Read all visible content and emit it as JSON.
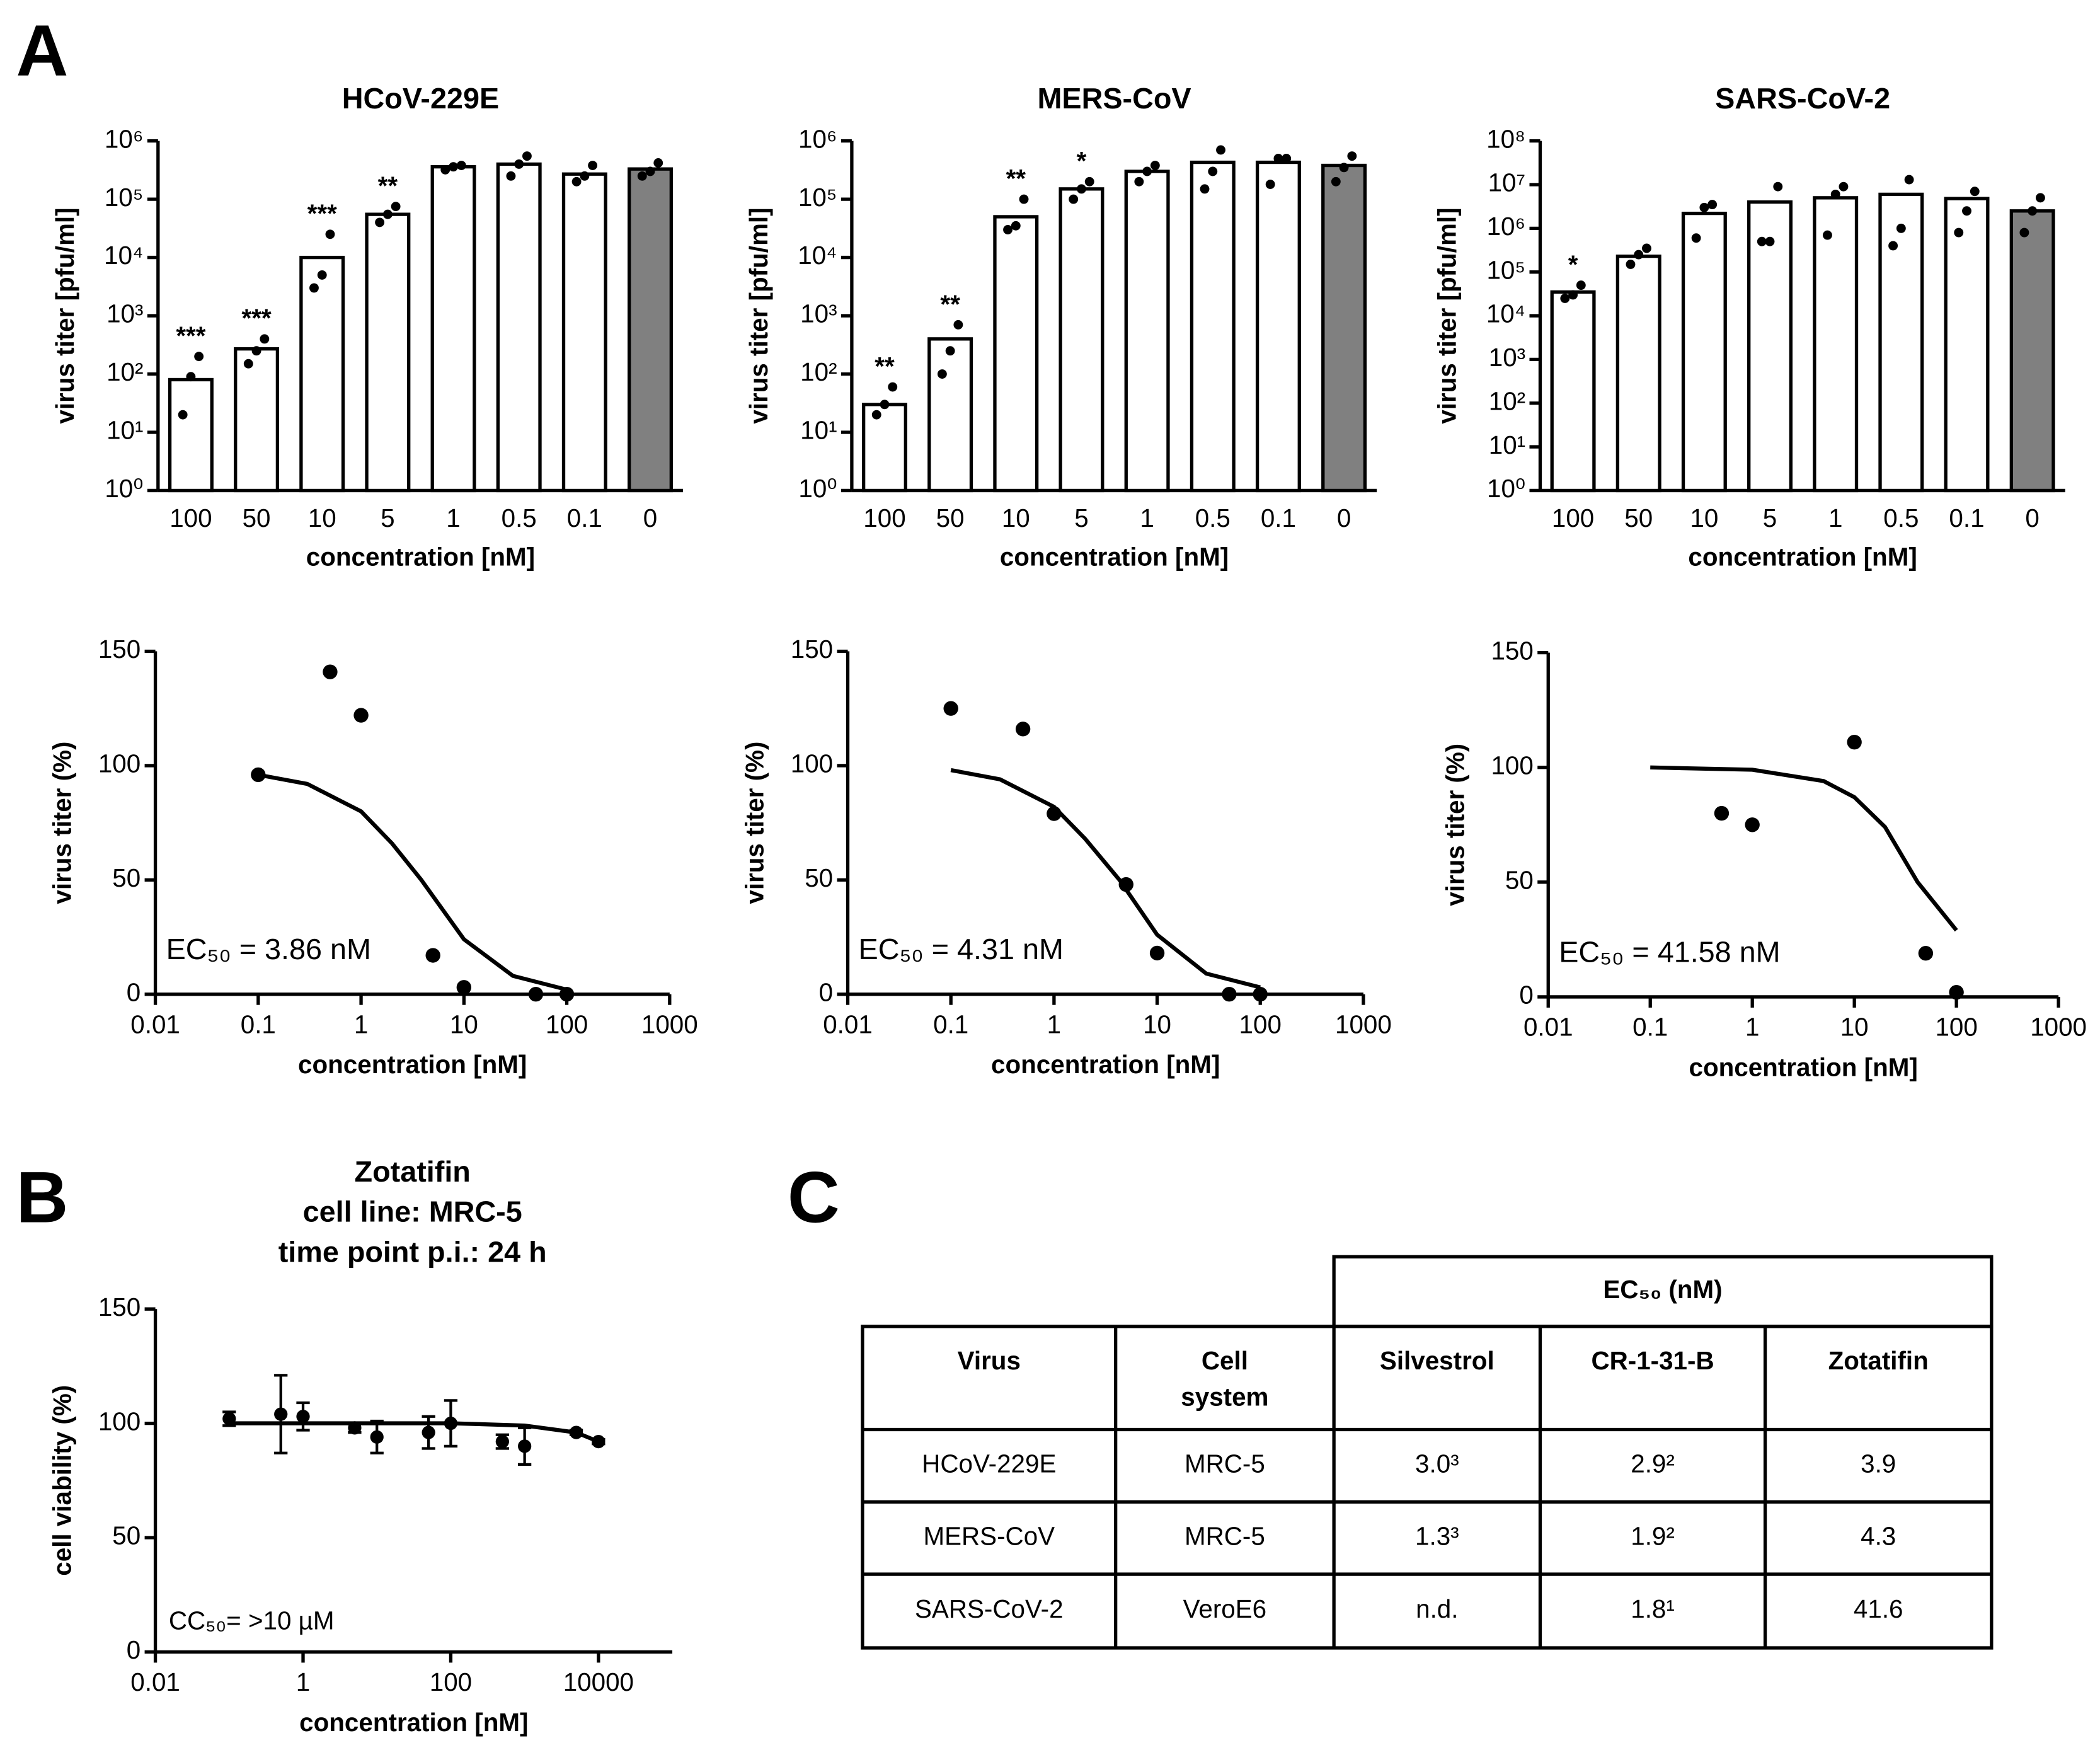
{
  "panels": [
    "A",
    "B",
    "C"
  ],
  "chart_data": [
    {
      "type": "bar",
      "title": "HCoV-229E",
      "xlabel": "concentration [nM]",
      "ylabel": "virus titer [pfu/ml]",
      "log_scale": true,
      "categories": [
        "100",
        "50",
        "10",
        "5",
        "1",
        "0.5",
        "0.1",
        "0"
      ],
      "values": [
        80,
        270,
        10000,
        55000,
        360000,
        400000,
        270000,
        330000
      ],
      "colors": [
        "#ffffff",
        "#ffffff",
        "#ffffff",
        "#ffffff",
        "#ffffff",
        "#ffffff",
        "#ffffff",
        "#808080"
      ],
      "points": [
        [
          20,
          90,
          200
        ],
        [
          150,
          250,
          400
        ],
        [
          3000,
          5000,
          25000
        ],
        [
          40000,
          55000,
          75000
        ],
        [
          320000,
          360000,
          380000
        ],
        [
          250000,
          400000,
          550000
        ],
        [
          200000,
          250000,
          380000
        ],
        [
          250000,
          300000,
          420000
        ]
      ],
      "annotations": [
        "***",
        "***",
        "***",
        "**",
        null,
        null,
        null,
        null
      ],
      "ylim": [
        1,
        1000000
      ],
      "yticks": [
        {
          "value": 1,
          "label": "10⁰"
        },
        {
          "value": 10,
          "label": "10¹"
        },
        {
          "value": 100,
          "label": "10²"
        },
        {
          "value": 1000,
          "label": "10³"
        },
        {
          "value": 10000,
          "label": "10⁴"
        },
        {
          "value": 100000,
          "label": "10⁵"
        },
        {
          "value": 1000000,
          "label": "10⁶"
        }
      ]
    },
    {
      "type": "bar",
      "title": "MERS-CoV",
      "xlabel": "concentration [nM]",
      "ylabel": "virus titer [pfu/ml]",
      "log_scale": true,
      "categories": [
        "100",
        "50",
        "10",
        "5",
        "1",
        "0.5",
        "0.1",
        "0"
      ],
      "values": [
        30,
        400,
        50000,
        150000,
        300000,
        430000,
        430000,
        380000
      ],
      "colors": [
        "#ffffff",
        "#ffffff",
        "#ffffff",
        "#ffffff",
        "#ffffff",
        "#ffffff",
        "#ffffff",
        "#808080"
      ],
      "points": [
        [
          20,
          30,
          60
        ],
        [
          100,
          250,
          700
        ],
        [
          30000,
          35000,
          100000
        ],
        [
          100000,
          150000,
          200000
        ],
        [
          200000,
          300000,
          380000
        ],
        [
          150000,
          300000,
          700000
        ],
        [
          180000,
          500000,
          500000
        ],
        [
          200000,
          350000,
          550000
        ]
      ],
      "annotations": [
        "**",
        "**",
        "**",
        "*",
        null,
        null,
        null,
        null
      ],
      "ylim": [
        1,
        1000000
      ],
      "yticks": [
        {
          "value": 1,
          "label": "10⁰"
        },
        {
          "value": 10,
          "label": "10¹"
        },
        {
          "value": 100,
          "label": "10²"
        },
        {
          "value": 1000,
          "label": "10³"
        },
        {
          "value": 10000,
          "label": "10⁴"
        },
        {
          "value": 100000,
          "label": "10⁵"
        },
        {
          "value": 1000000,
          "label": "10⁶"
        }
      ]
    },
    {
      "type": "bar",
      "title": "SARS-CoV-2",
      "xlabel": "concentration [nM]",
      "ylabel": "virus titer [pfu/ml]",
      "log_scale": true,
      "categories": [
        "100",
        "50",
        "10",
        "5",
        "1",
        "0.5",
        "0.1",
        "0"
      ],
      "values": [
        35000,
        230000,
        2200000,
        4000000,
        5000000,
        6000000,
        4800000,
        2500000
      ],
      "colors": [
        "#ffffff",
        "#ffffff",
        "#ffffff",
        "#ffffff",
        "#ffffff",
        "#ffffff",
        "#ffffff",
        "#808080"
      ],
      "points": [
        [
          25000,
          30000,
          50000
        ],
        [
          150000,
          250000,
          350000
        ],
        [
          600000,
          3000000,
          3500000
        ],
        [
          500000,
          500000,
          9000000
        ],
        [
          700000,
          6000000,
          9000000
        ],
        [
          400000,
          1000000,
          13000000
        ],
        [
          800000,
          2500000,
          7000000
        ],
        [
          800000,
          2500000,
          5000000
        ]
      ],
      "annotations": [
        "*",
        null,
        null,
        null,
        null,
        null,
        null,
        null
      ],
      "ylim": [
        1,
        100000000
      ],
      "yticks": [
        {
          "value": 1,
          "label": "10⁰"
        },
        {
          "value": 10,
          "label": "10¹"
        },
        {
          "value": 100,
          "label": "10²"
        },
        {
          "value": 1000,
          "label": "10³"
        },
        {
          "value": 10000,
          "label": "10⁴"
        },
        {
          "value": 100000,
          "label": "10⁵"
        },
        {
          "value": 1000000,
          "label": "10⁶"
        },
        {
          "value": 10000000,
          "label": "10⁷"
        },
        {
          "value": 100000000,
          "label": "10⁸"
        }
      ]
    },
    {
      "type": "scatter",
      "xlabel": "concentration [nM]",
      "ylabel": "virus titer (%)",
      "log_x": true,
      "annotation": "EC₅₀ = 3.86 nM",
      "x": [
        0.1,
        0.5,
        1,
        5,
        10,
        50,
        100
      ],
      "values": [
        96,
        141,
        122,
        17,
        3,
        0,
        0
      ],
      "fit": {
        "x": [
          0.1,
          0.3,
          1,
          2,
          3.86,
          10,
          30,
          100
        ],
        "y": [
          96,
          92,
          80,
          66,
          50,
          24,
          8,
          2
        ]
      },
      "xlim": [
        0.01,
        1000
      ],
      "xticks": [
        0.01,
        0.1,
        1,
        10,
        100,
        1000
      ],
      "ylim": [
        0,
        150
      ],
      "yticks": [
        0,
        50,
        100,
        150
      ]
    },
    {
      "type": "scatter",
      "xlabel": "concentration [nM]",
      "ylabel": "virus titer (%)",
      "log_x": true,
      "annotation": "EC₅₀ = 4.31 nM",
      "x": [
        0.1,
        0.5,
        1,
        5,
        10,
        50,
        100
      ],
      "values": [
        125,
        116,
        79,
        48,
        18,
        0,
        0
      ],
      "fit": {
        "x": [
          0.1,
          0.3,
          1,
          2,
          4.31,
          10,
          30,
          100
        ],
        "y": [
          98,
          94,
          82,
          68,
          50,
          26,
          9,
          3
        ]
      },
      "xlim": [
        0.01,
        1000
      ],
      "xticks": [
        0.01,
        0.1,
        1,
        10,
        100,
        1000
      ],
      "ylim": [
        0,
        150
      ],
      "yticks": [
        0,
        50,
        100,
        150
      ]
    },
    {
      "type": "scatter",
      "xlabel": "concentration [nM]",
      "ylabel": "virus titer (%)",
      "log_x": true,
      "annotation": "EC₅₀ = 41.58 nM",
      "x": [
        0.5,
        1,
        10,
        50,
        100
      ],
      "values": [
        80,
        75,
        111,
        19,
        2
      ],
      "fit": {
        "x": [
          0.1,
          1,
          5,
          10,
          20,
          41.58,
          100
        ],
        "y": [
          100,
          99,
          94,
          87,
          74,
          50,
          29
        ]
      },
      "xlim": [
        0.01,
        1000
      ],
      "xticks": [
        0.01,
        0.1,
        1,
        10,
        100,
        1000
      ],
      "ylim": [
        0,
        150
      ],
      "yticks": [
        0,
        50,
        100,
        150
      ]
    },
    {
      "type": "scatter",
      "title": [
        "Zotatifin",
        "cell line: MRC-5",
        "time point p.i.: 24 h"
      ],
      "xlabel": "concentration [nM]",
      "ylabel": "cell viability (%)",
      "log_x": true,
      "annotation": "CC₅₀= >10 µM",
      "x": [
        0.1,
        0.5,
        1,
        5,
        10,
        50,
        100,
        500,
        1000,
        5000,
        10000
      ],
      "values": [
        102,
        104,
        103,
        98,
        94,
        96,
        100,
        92,
        90,
        96,
        92
      ],
      "errors": [
        3,
        17,
        6,
        2,
        7,
        7,
        10,
        3,
        8,
        1,
        1
      ],
      "fit": {
        "x": [
          0.1,
          1,
          10,
          100,
          1000,
          5000,
          10000
        ],
        "y": [
          100,
          100,
          100,
          100,
          99,
          96,
          92
        ]
      },
      "xlim": [
        0.01,
        100000
      ],
      "xticks": [
        0.01,
        1,
        100,
        10000
      ],
      "ylim": [
        0,
        150
      ],
      "yticks": [
        0,
        50,
        100,
        150
      ]
    }
  ],
  "table": {
    "group": "EC₅₀ (nM)",
    "header": [
      "Virus",
      "Cell system",
      "Silvestrol",
      "CR-1-31-B",
      "Zotatifin"
    ],
    "rows": [
      [
        "HCoV-229E",
        "MRC-5",
        "3.0³",
        "2.9²",
        "3.9"
      ],
      [
        "MERS-CoV",
        "MRC-5",
        "1.3³",
        "1.9²",
        "4.3"
      ],
      [
        "SARS-CoV-2",
        "VeroE6",
        "n.d.",
        "1.8¹",
        "41.6"
      ]
    ]
  }
}
